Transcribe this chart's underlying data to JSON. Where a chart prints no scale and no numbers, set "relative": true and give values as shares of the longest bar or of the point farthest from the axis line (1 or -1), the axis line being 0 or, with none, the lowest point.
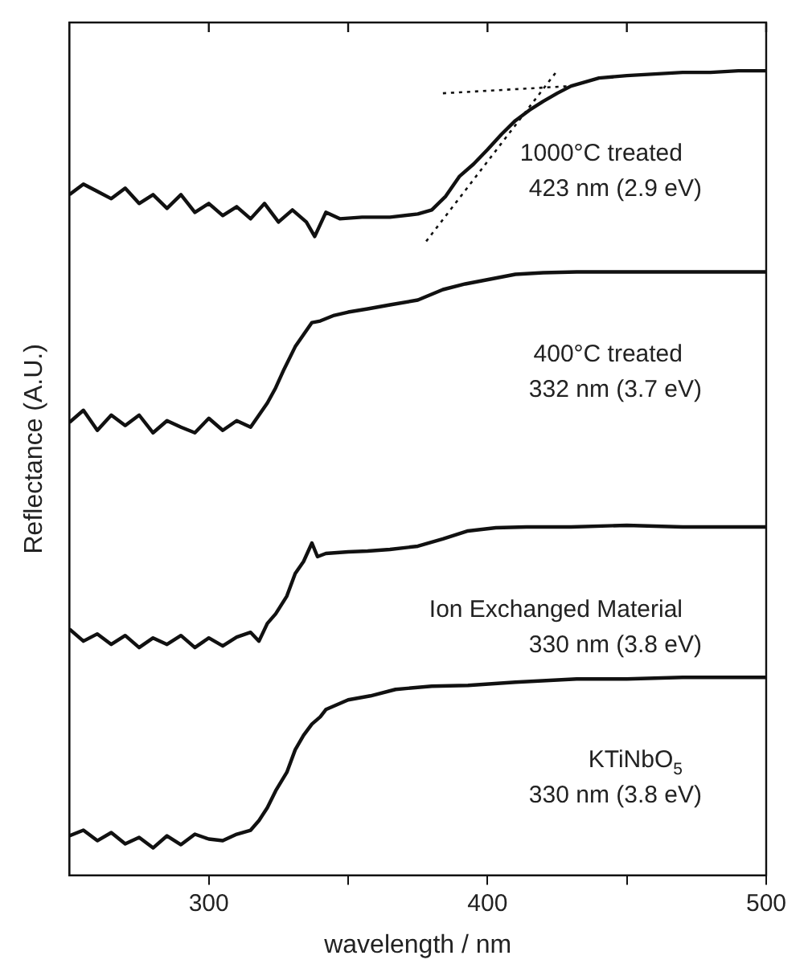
{
  "chart_data": {
    "type": "line",
    "relative": true,
    "xlabel": "wavelength / nm",
    "ylabel": "Reflectance (A.U.)",
    "xlim": [
      250,
      500
    ],
    "xticks": [
      300,
      {
        "value": 350,
        "label": null
      },
      400,
      {
        "value": 450,
        "label": null
      },
      500
    ],
    "grid": false,
    "legend": false,
    "marker": "none",
    "line_style": "solid",
    "annotations": [
      "423 nm (2.9 eV)",
      "332 nm (3.7 eV)",
      "330 nm (3.8 eV)",
      "330 nm (3.8 eV)"
    ],
    "series": [
      {
        "name": "1000°C treated",
        "color": "#111111",
        "x": [
          250,
          255,
          260,
          265,
          270,
          275,
          280,
          285,
          290,
          295,
          300,
          305,
          310,
          315,
          320,
          325,
          330,
          335,
          338,
          342,
          347,
          355,
          365,
          375,
          380,
          385,
          390,
          395,
          400,
          405,
          410,
          415,
          420,
          425,
          430,
          440,
          450,
          460,
          470,
          480,
          490,
          500
        ],
        "values": [
          0.846,
          0.859,
          0.85,
          0.841,
          0.854,
          0.835,
          0.846,
          0.829,
          0.846,
          0.824,
          0.835,
          0.82,
          0.831,
          0.816,
          0.835,
          0.812,
          0.827,
          0.812,
          0.794,
          0.824,
          0.816,
          0.818,
          0.818,
          0.822,
          0.827,
          0.844,
          0.869,
          0.884,
          0.902,
          0.921,
          0.938,
          0.951,
          0.962,
          0.972,
          0.981,
          0.991,
          0.994,
          0.996,
          0.998,
          0.998,
          1,
          1
        ]
      },
      {
        "name": "400°C treated",
        "color": "#111111",
        "x": [
          250,
          255,
          260,
          265,
          270,
          275,
          280,
          285,
          290,
          295,
          300,
          305,
          310,
          315,
          318,
          321,
          324,
          327,
          331,
          334,
          337,
          340,
          345,
          350,
          357,
          365,
          375,
          384,
          392,
          401,
          410,
          420,
          432,
          450,
          470,
          500
        ],
        "values": [
          0.563,
          0.578,
          0.553,
          0.572,
          0.559,
          0.572,
          0.55,
          0.565,
          0.557,
          0.55,
          0.568,
          0.553,
          0.565,
          0.557,
          0.572,
          0.587,
          0.606,
          0.629,
          0.657,
          0.672,
          0.687,
          0.689,
          0.696,
          0.7,
          0.704,
          0.709,
          0.715,
          0.728,
          0.735,
          0.741,
          0.747,
          0.749,
          0.75,
          0.75,
          0.75,
          0.75
        ]
      },
      {
        "name": "Ion Exchanged Material",
        "color": "#111111",
        "x": [
          250,
          255,
          260,
          265,
          270,
          275,
          280,
          285,
          290,
          295,
          300,
          305,
          310,
          315,
          318,
          321,
          324,
          328,
          331,
          334,
          337,
          339,
          342,
          350,
          357,
          365,
          375,
          384,
          393,
          403,
          414,
          430,
          450,
          470,
          500
        ],
        "values": [
          0.306,
          0.291,
          0.3,
          0.287,
          0.298,
          0.283,
          0.295,
          0.287,
          0.298,
          0.283,
          0.295,
          0.285,
          0.296,
          0.302,
          0.291,
          0.313,
          0.325,
          0.347,
          0.375,
          0.39,
          0.413,
          0.396,
          0.4,
          0.402,
          0.403,
          0.405,
          0.409,
          0.418,
          0.428,
          0.432,
          0.433,
          0.433,
          0.435,
          0.433,
          0.433
        ]
      },
      {
        "name": "KTiNbO$_{5}$",
        "color": "#111111",
        "x": [
          250,
          255,
          260,
          265,
          270,
          275,
          280,
          285,
          290,
          295,
          300,
          305,
          310,
          315,
          318,
          321,
          324,
          328,
          331,
          334,
          337,
          340,
          342,
          346,
          350,
          358,
          367,
          380,
          393,
          410,
          432,
          450,
          470,
          500
        ],
        "values": [
          0.049,
          0.056,
          0.043,
          0.053,
          0.039,
          0.047,
          0.034,
          0.049,
          0.038,
          0.051,
          0.045,
          0.043,
          0.051,
          0.056,
          0.068,
          0.084,
          0.105,
          0.128,
          0.156,
          0.174,
          0.188,
          0.197,
          0.206,
          0.212,
          0.218,
          0.223,
          0.231,
          0.235,
          0.236,
          0.24,
          0.244,
          0.244,
          0.246,
          0.246
        ]
      },
      {
        "type": "line",
        "color": "#111111",
        "line_style": "dotted",
        "x": [
          384,
          430
        ],
        "values": [
          0.972,
          0.981
        ]
      },
      {
        "type": "line",
        "color": "#111111",
        "line_style": "dotted",
        "x": [
          378,
          425
        ],
        "values": [
          0.788,
          1
        ]
      }
    ]
  }
}
